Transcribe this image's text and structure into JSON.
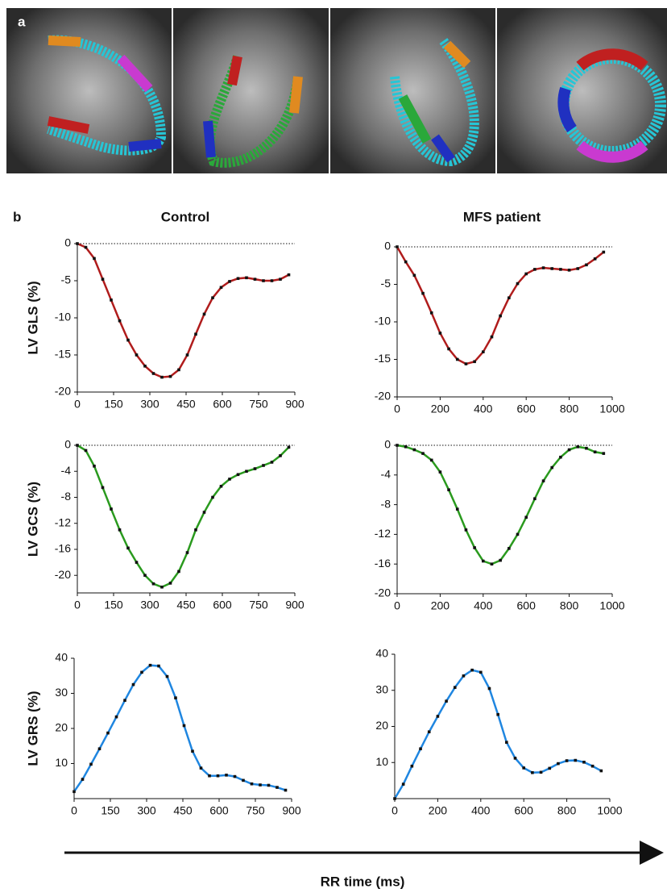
{
  "panel_a_label": "a",
  "panel_b_label": "b",
  "column_titles": [
    "Control",
    "MFS patient"
  ],
  "x_axis_label": "RR time (ms)",
  "chart_data": [
    {
      "type": "line",
      "ylabel": "LV GLS (%)",
      "color": "#b01c1c",
      "zero_line": true,
      "x": [
        0,
        35,
        70,
        105,
        140,
        175,
        210,
        245,
        280,
        315,
        350,
        385,
        420,
        455,
        490,
        525,
        560,
        595,
        630,
        665,
        700,
        735,
        770,
        805,
        840,
        875
      ],
      "values": [
        0,
        -0.5,
        -2,
        -4.8,
        -7.6,
        -10.4,
        -13,
        -15,
        -16.5,
        -17.5,
        -18,
        -17.9,
        -17,
        -15,
        -12.2,
        -9.5,
        -7.3,
        -5.9,
        -5.1,
        -4.7,
        -4.6,
        -4.8,
        -5,
        -5,
        -4.8,
        -4.2
      ],
      "xlim": [
        0,
        900
      ],
      "xticks": [
        0,
        150,
        300,
        450,
        600,
        750,
        900
      ],
      "ylim": [
        -20,
        0
      ],
      "yticks": [
        0,
        -5,
        -10,
        -15,
        -20
      ]
    },
    {
      "type": "line",
      "color": "#b01c1c",
      "zero_line": true,
      "x": [
        0,
        40,
        80,
        120,
        160,
        200,
        240,
        280,
        320,
        360,
        400,
        440,
        480,
        520,
        560,
        600,
        640,
        680,
        720,
        760,
        800,
        840,
        880,
        920,
        960
      ],
      "values": [
        0,
        -2,
        -3.8,
        -6.2,
        -8.8,
        -11.5,
        -13.6,
        -15,
        -15.6,
        -15.3,
        -14,
        -12,
        -9.2,
        -6.8,
        -4.9,
        -3.6,
        -3,
        -2.8,
        -2.9,
        -3,
        -3.1,
        -2.9,
        -2.4,
        -1.6,
        -0.7
      ],
      "xlim": [
        0,
        1000
      ],
      "xticks": [
        0,
        200,
        400,
        600,
        800,
        1000
      ],
      "ylim": [
        -20,
        0
      ],
      "yticks": [
        0,
        -5,
        -10,
        -15,
        -20
      ]
    },
    {
      "type": "line",
      "ylabel": "LV GCS (%)",
      "color": "#2a9a1e",
      "zero_line": true,
      "x": [
        0,
        35,
        70,
        105,
        140,
        175,
        210,
        245,
        280,
        315,
        350,
        385,
        420,
        455,
        490,
        525,
        560,
        595,
        630,
        665,
        700,
        735,
        770,
        805,
        840,
        875
      ],
      "values": [
        0,
        -0.8,
        -3.2,
        -6.5,
        -9.8,
        -13,
        -15.8,
        -18,
        -20,
        -21.3,
        -21.8,
        -21.2,
        -19.4,
        -16.5,
        -13,
        -10.3,
        -8,
        -6.3,
        -5.2,
        -4.5,
        -4,
        -3.6,
        -3.1,
        -2.6,
        -1.6,
        -0.3
      ],
      "xlim": [
        0,
        900
      ],
      "xticks": [
        0,
        150,
        300,
        450,
        600,
        750,
        900
      ],
      "ylim": [
        -22.7,
        0
      ],
      "yticks": [
        0,
        -4,
        -8,
        -12,
        -16,
        -20
      ]
    },
    {
      "type": "line",
      "color": "#2a9a1e",
      "zero_line": true,
      "x": [
        0,
        40,
        80,
        120,
        160,
        200,
        240,
        280,
        320,
        360,
        400,
        440,
        480,
        520,
        560,
        600,
        640,
        680,
        720,
        760,
        800,
        840,
        880,
        920,
        960
      ],
      "values": [
        0,
        -0.2,
        -0.6,
        -1.1,
        -2,
        -3.6,
        -6,
        -8.6,
        -11.4,
        -13.8,
        -15.6,
        -16,
        -15.5,
        -13.9,
        -12,
        -9.7,
        -7.2,
        -4.8,
        -3,
        -1.6,
        -0.6,
        -0.2,
        -0.4,
        -0.9,
        -1.1
      ],
      "xlim": [
        0,
        1000
      ],
      "xticks": [
        0,
        200,
        400,
        600,
        800,
        1000
      ],
      "ylim": [
        -20,
        0
      ],
      "yticks": [
        0,
        -4,
        -8,
        -12,
        -16,
        -20
      ]
    },
    {
      "type": "line",
      "ylabel": "LV GRS (%)",
      "color": "#1f86e0",
      "zero_line": false,
      "x": [
        0,
        35,
        70,
        105,
        140,
        175,
        210,
        245,
        280,
        315,
        350,
        385,
        420,
        455,
        490,
        525,
        560,
        595,
        630,
        665,
        700,
        735,
        770,
        805,
        840,
        875
      ],
      "values": [
        2,
        5.5,
        9.8,
        14.2,
        18.7,
        23.3,
        28,
        32.5,
        36,
        38,
        37.8,
        34.8,
        28.7,
        20.8,
        13.5,
        8.7,
        6.5,
        6.5,
        6.7,
        6.3,
        5.2,
        4.2,
        3.9,
        3.8,
        3.2,
        2.4
      ],
      "xlim": [
        0,
        900
      ],
      "xticks": [
        0,
        150,
        300,
        450,
        600,
        750,
        900
      ],
      "ylim": [
        0,
        40
      ],
      "yticks": [
        10,
        20,
        30,
        40
      ]
    },
    {
      "type": "line",
      "color": "#1f86e0",
      "zero_line": false,
      "x": [
        0,
        40,
        80,
        120,
        160,
        200,
        240,
        280,
        320,
        360,
        400,
        440,
        480,
        520,
        560,
        600,
        640,
        680,
        720,
        760,
        800,
        840,
        880,
        920,
        960
      ],
      "values": [
        0,
        4,
        9,
        13.8,
        18.5,
        22.8,
        27,
        30.8,
        34,
        35.6,
        35,
        30.5,
        23.3,
        15.6,
        11.2,
        8.5,
        7.2,
        7.3,
        8.4,
        9.7,
        10.5,
        10.6,
        10.1,
        9,
        7.7
      ],
      "xlim": [
        0,
        1000
      ],
      "xticks": [
        0,
        200,
        400,
        600,
        800,
        1000
      ],
      "ylim": [
        0,
        40
      ],
      "yticks": [
        10,
        20,
        30,
        40
      ]
    }
  ]
}
